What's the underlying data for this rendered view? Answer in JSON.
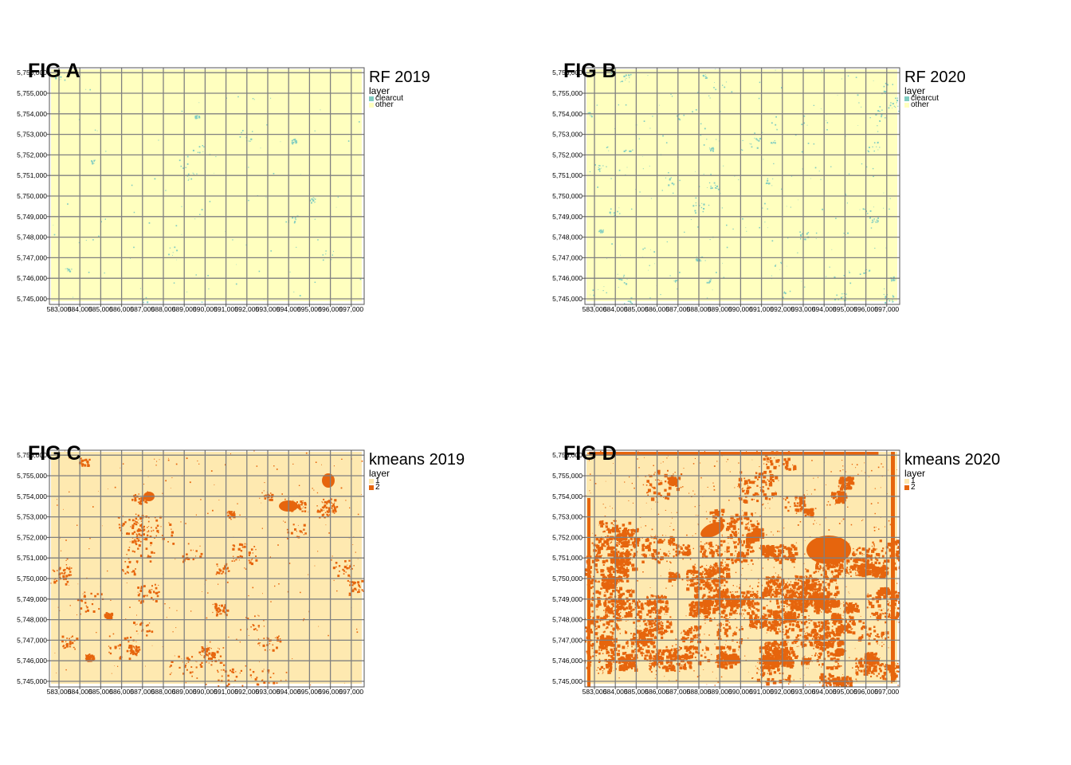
{
  "panels": [
    {
      "id": "a",
      "fig_label": "FIG A",
      "legend_title": "RF 2019",
      "legend_subtitle": "layer",
      "legend_items": [
        {
          "label": "clearcut",
          "color": "#80cdc1"
        },
        {
          "label": "other",
          "color": "#ffffbf"
        }
      ],
      "background_color": "#ffffbf",
      "feature_color": "#80cdc1",
      "feature_density": "sparse"
    },
    {
      "id": "b",
      "fig_label": "FIG B",
      "legend_title": "RF 2020",
      "legend_subtitle": "layer",
      "legend_items": [
        {
          "label": "clearcut",
          "color": "#80cdc1"
        },
        {
          "label": "other",
          "color": "#ffffbf"
        }
      ],
      "background_color": "#ffffbf",
      "feature_color": "#80cdc1",
      "feature_density": "moderate"
    },
    {
      "id": "c",
      "fig_label": "FIG C",
      "legend_title": "kmeans 2019",
      "legend_subtitle": "layer",
      "legend_items": [
        {
          "label": "1",
          "color": "#fee9b0"
        },
        {
          "label": "2",
          "color": "#e6650d"
        }
      ],
      "background_color": "#fee9b0",
      "feature_color": "#e6650d",
      "feature_density": "moderate"
    },
    {
      "id": "d",
      "fig_label": "FIG D",
      "legend_title": "kmeans 2020",
      "legend_subtitle": "layer",
      "legend_items": [
        {
          "label": "1",
          "color": "#fee9b0"
        },
        {
          "label": "2",
          "color": "#e6650d"
        }
      ],
      "background_color": "#fee9b0",
      "feature_color": "#e6650d",
      "feature_density": "dense"
    }
  ],
  "axes": {
    "x_ticks": [
      "583,000",
      "584,000",
      "585,000",
      "586,000",
      "587,000",
      "588,000",
      "589,000",
      "590,000",
      "591,000",
      "592,000",
      "593,000",
      "594,000",
      "595,000",
      "596,000",
      "597,000"
    ],
    "y_ticks": [
      "5,745,000",
      "5,746,000",
      "5,747,000",
      "5,748,000",
      "5,749,000",
      "5,750,000",
      "5,751,000",
      "5,752,000",
      "5,753,000",
      "5,754,000",
      "5,755,000",
      "5,756,000"
    ],
    "x_range": [
      582500,
      597200
    ],
    "y_range": [
      5744900,
      5756150
    ],
    "grid_color": "#808080"
  }
}
